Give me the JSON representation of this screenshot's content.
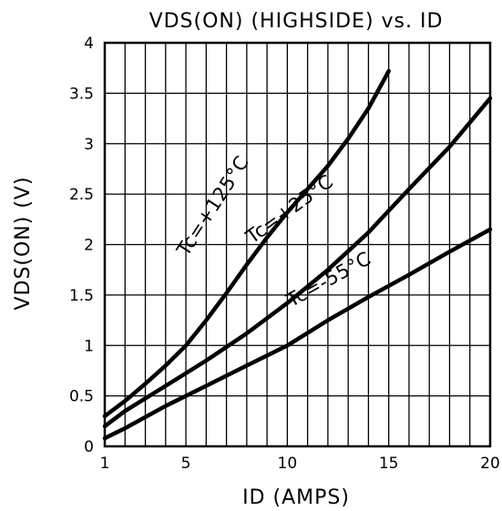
{
  "chart_data": {
    "type": "line",
    "title": "VDS(ON) (HIGHSIDE) vs. ID",
    "xlabel": "ID (AMPS)",
    "ylabel": "VDS(ON) (V)",
    "xlim": [
      1,
      20
    ],
    "ylim": [
      0,
      4
    ],
    "x_ticks": [
      "1",
      "5",
      "10",
      "15",
      "20"
    ],
    "y_ticks": [
      "0",
      "0.5",
      "1",
      "1.5",
      "2",
      "2.5",
      "3",
      "3.5",
      "4"
    ],
    "grid": true,
    "series": [
      {
        "name": "Tc=+125°C",
        "x": [
          1,
          2,
          3,
          4,
          5,
          6,
          7,
          8,
          9,
          10,
          11,
          12,
          13,
          14,
          15
        ],
        "y": [
          0.3,
          0.45,
          0.62,
          0.8,
          1.0,
          1.25,
          1.52,
          1.8,
          2.07,
          2.32,
          2.55,
          2.78,
          3.05,
          3.35,
          3.72
        ]
      },
      {
        "name": "Tc=+25°C",
        "x": [
          1,
          2,
          4,
          6,
          8,
          10,
          12,
          14,
          16,
          18,
          20
        ],
        "y": [
          0.2,
          0.35,
          0.6,
          0.85,
          1.12,
          1.42,
          1.75,
          2.12,
          2.55,
          2.97,
          3.45
        ]
      },
      {
        "name": "Tc=-55°C",
        "x": [
          1,
          2,
          4,
          6,
          8,
          10,
          12,
          14,
          16,
          18,
          20
        ],
        "y": [
          0.08,
          0.18,
          0.4,
          0.6,
          0.8,
          1.0,
          1.25,
          1.48,
          1.7,
          1.93,
          2.15
        ]
      }
    ]
  }
}
